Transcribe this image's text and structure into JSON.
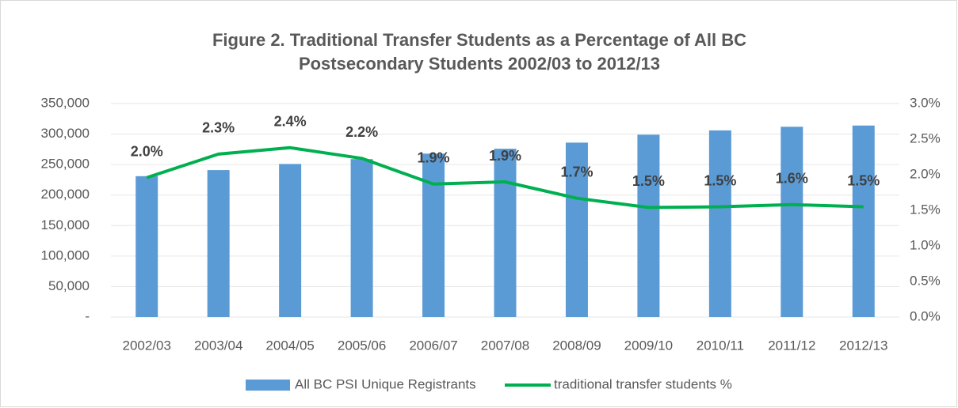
{
  "chart_data": {
    "type": "bar_line",
    "title": "Figure 2. Traditional Transfer Students as a Percentage of All BC Postsecondary Students 2002/03 to 2012/13",
    "categories": [
      "2002/03",
      "2003/04",
      "2004/05",
      "2005/06",
      "2006/07",
      "2007/08",
      "2008/09",
      "2009/10",
      "2010/11",
      "2011/12",
      "2012/13"
    ],
    "series": [
      {
        "name": "All BC PSI Unique Registrants",
        "type": "bar",
        "color": "#5b9bd5",
        "values": [
          231000,
          241000,
          251000,
          259000,
          268000,
          276000,
          286000,
          299000,
          306000,
          312000,
          314000
        ]
      },
      {
        "name": "traditional transfer students %",
        "type": "line",
        "axis": "y2",
        "color": "#00b050",
        "values": [
          1.96,
          2.29,
          2.38,
          2.23,
          1.87,
          1.9,
          1.67,
          1.54,
          1.55,
          1.58,
          1.55
        ],
        "value_labels": [
          "2.0%",
          "2.3%",
          "2.4%",
          "2.2%",
          "1.9%",
          "1.9%",
          "1.7%",
          "1.5%",
          "1.5%",
          "1.6%",
          "1.5%"
        ]
      }
    ],
    "ylim": [
      0,
      350000
    ],
    "yticks": [
      {
        "value": 0,
        "label": "-"
      },
      {
        "value": 50000,
        "label": "50,000"
      },
      {
        "value": 100000,
        "label": "100,000"
      },
      {
        "value": 150000,
        "label": "150,000"
      },
      {
        "value": 200000,
        "label": "200,000"
      },
      {
        "value": 250000,
        "label": "250,000"
      },
      {
        "value": 300000,
        "label": "300,000"
      },
      {
        "value": 350000,
        "label": "350,000"
      }
    ],
    "y2lim": [
      0,
      3
    ],
    "y2ticks": [
      {
        "value": 0,
        "label": "0.0%"
      },
      {
        "value": 0.5,
        "label": "0.5%"
      },
      {
        "value": 1,
        "label": "1.0%"
      },
      {
        "value": 1.5,
        "label": "1.5%"
      },
      {
        "value": 2,
        "label": "2.0%"
      },
      {
        "value": 2.5,
        "label": "2.5%"
      },
      {
        "value": 3,
        "label": "3.0%"
      }
    ],
    "grid": true,
    "legend": "bottom"
  }
}
